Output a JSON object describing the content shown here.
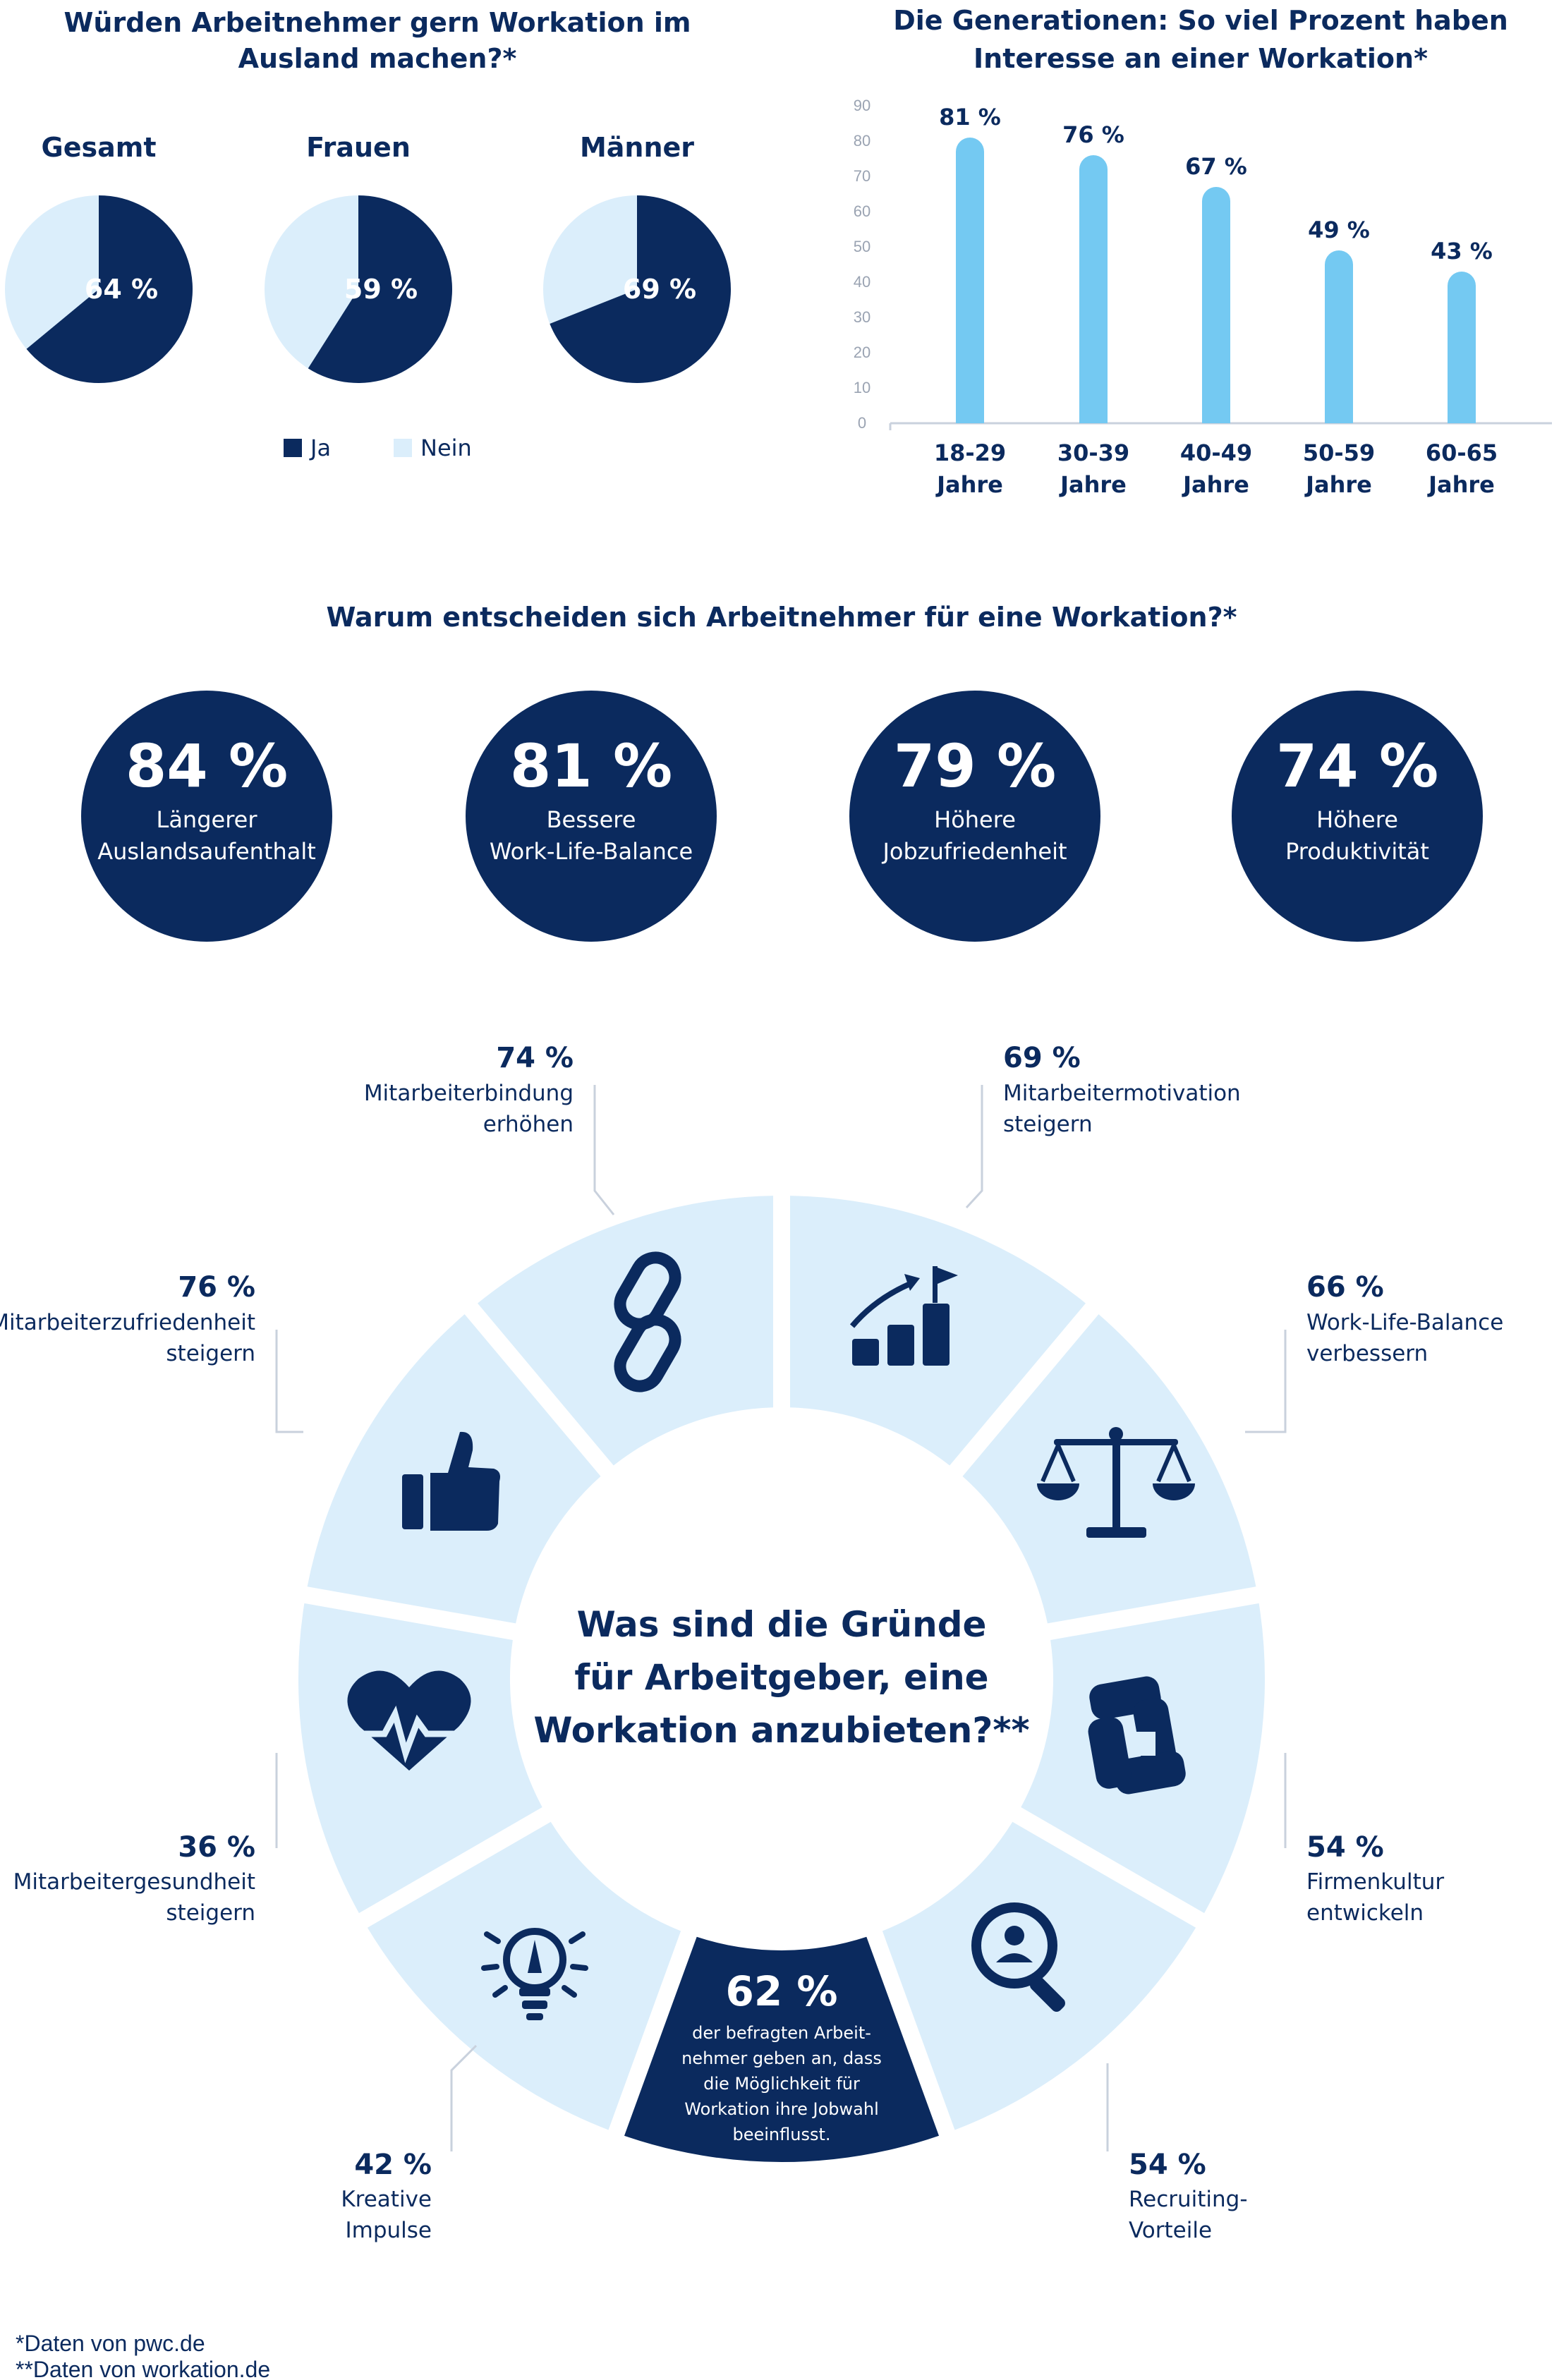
{
  "colors": {
    "dark": "#0b2a5e",
    "light": "#dbeefb",
    "bar": "#74c9f2",
    "white": "#ffffff"
  },
  "pies": {
    "title_line1": "Würden Arbeitnehmer gern Workation im",
    "title_line2": "Ausland machen?*",
    "legend_yes": "Ja",
    "legend_no": "Nein"
  },
  "bars": {
    "title_line1": "Die Generationen: So viel Prozent haben",
    "title_line2": "Interesse an einer Workation*"
  },
  "reasons": {
    "title": "Warum entscheiden sich Arbeitnehmer für eine Workation?*",
    "items": [
      {
        "pct": "84 %",
        "line1": "Längerer",
        "line2": "Auslandsaufenthalt"
      },
      {
        "pct": "81 %",
        "line1": "Bessere",
        "line2": "Work-Life-Balance"
      },
      {
        "pct": "79 %",
        "line1": "Höhere",
        "line2": "Jobzufriedenheit"
      },
      {
        "pct": "74 %",
        "line1": "Höhere",
        "line2": "Produktivität"
      }
    ]
  },
  "employer": {
    "center_line1": "Was sind die Gründe",
    "center_line2": "für Arbeitgeber, eine",
    "center_line3": "Workation anzubieten?**",
    "bottom_pct": "62 %",
    "bottom_lines": [
      "der befragten Arbeit-",
      "nehmer geben an, dass",
      "die Möglichkeit für",
      "Workation ihre Jobwahl",
      "beeinflusst."
    ],
    "items": [
      {
        "pct": "74 %",
        "line1": "Mitarbeiterbindung",
        "line2": "erhöhen",
        "icon": "chain-link-icon"
      },
      {
        "pct": "69 %",
        "line1": "Mitarbeitermotivation",
        "line2": "steigern",
        "icon": "growth-chart-flag-icon"
      },
      {
        "pct": "66 %",
        "line1": "Work-Life-Balance",
        "line2": "verbessern",
        "icon": "balance-scale-icon"
      },
      {
        "pct": "54 %",
        "line1": "Firmenkultur",
        "line2": "entwickeln",
        "icon": "joined-hands-icon"
      },
      {
        "pct": "54 %",
        "line1": "Recruiting-",
        "line2": "Vorteile",
        "icon": "magnifier-person-icon"
      },
      {
        "pct": "42 %",
        "line1": "Kreative",
        "line2": "Impulse",
        "icon": "lightbulb-icon"
      },
      {
        "pct": "36 %",
        "line1": "Mitarbeitergesundheit",
        "line2": "steigern",
        "icon": "heart-pulse-icon"
      },
      {
        "pct": "76 %",
        "line1": "Mitarbeiterzufriedenheit",
        "line2": "steigern",
        "icon": "thumbs-up-icon"
      }
    ]
  },
  "footnotes": {
    "line1": "*Daten von pwc.de",
    "line2": "**Daten von workation.de"
  },
  "chart_data": [
    {
      "type": "pie",
      "title": "Würden Arbeitnehmer gern Workation im Ausland machen?*",
      "legend": [
        "Ja",
        "Nein"
      ],
      "pies": [
        {
          "name": "Gesamt",
          "values": [
            64,
            36
          ],
          "label": "64 %"
        },
        {
          "name": "Frauen",
          "values": [
            59,
            41
          ],
          "label": "59 %"
        },
        {
          "name": "Männer",
          "values": [
            69,
            31
          ],
          "label": "69 %"
        }
      ]
    },
    {
      "type": "bar",
      "title": "Die Generationen: So viel Prozent haben Interesse an einer Workation*",
      "categories": [
        {
          "line1": "18-29",
          "line2": "Jahre"
        },
        {
          "line1": "30-39",
          "line2": "Jahre"
        },
        {
          "line1": "40-49",
          "line2": "Jahre"
        },
        {
          "line1": "50-59",
          "line2": "Jahre"
        },
        {
          "line1": "60-65",
          "line2": "Jahre"
        }
      ],
      "values": [
        81,
        76,
        67,
        49,
        43
      ],
      "value_labels": [
        "81 %",
        "76 %",
        "67 %",
        "49 %",
        "43 %"
      ],
      "ylim": [
        0,
        90
      ],
      "yticks": [
        "0",
        "10",
        "20",
        "30",
        "40",
        "50",
        "60",
        "70",
        "80",
        "90"
      ],
      "grid": false
    }
  ]
}
